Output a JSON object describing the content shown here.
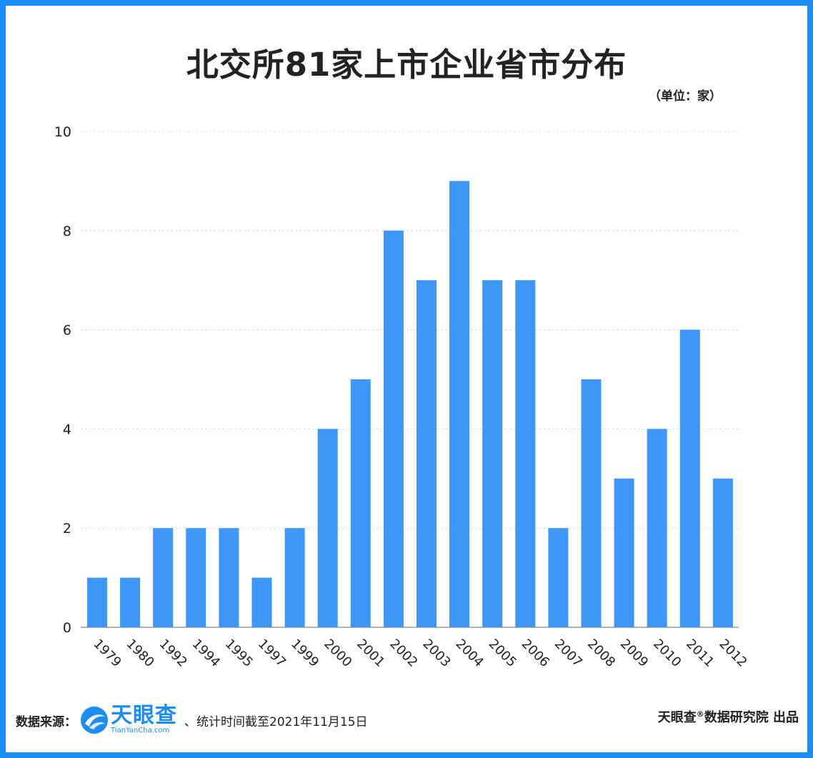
{
  "title": "北交所81家上市企业省市分布",
  "unit": "（单位：家）",
  "footer": {
    "source_label": "数据来源：",
    "logo_cn": "天眼查",
    "logo_en": "TianYanCha.com",
    "stat_date": "、统计时间截至2021年11月15日",
    "credit_brand": "天眼查",
    "credit_mark": "®",
    "credit_rest": "数据研究院 出品"
  },
  "colors": {
    "bar": "#3e96f7",
    "frame": "#1c8cf6",
    "text": "#222222",
    "grid": "#dddddd"
  },
  "chart_data": {
    "type": "bar",
    "categories": [
      "1979",
      "1980",
      "1992",
      "1994",
      "1995",
      "1997",
      "1999",
      "2000",
      "2001",
      "2002",
      "2003",
      "2004",
      "2005",
      "2006",
      "2007",
      "2008",
      "2009",
      "2010",
      "2011",
      "2012"
    ],
    "values": [
      1,
      1,
      2,
      2,
      2,
      1,
      2,
      4,
      5,
      8,
      7,
      9,
      7,
      7,
      2,
      5,
      3,
      4,
      6,
      3
    ],
    "ylim": [
      0,
      10
    ],
    "yticks": [
      0,
      2,
      4,
      6,
      8,
      10
    ],
    "grid": true,
    "xlabel": "",
    "ylabel": ""
  }
}
